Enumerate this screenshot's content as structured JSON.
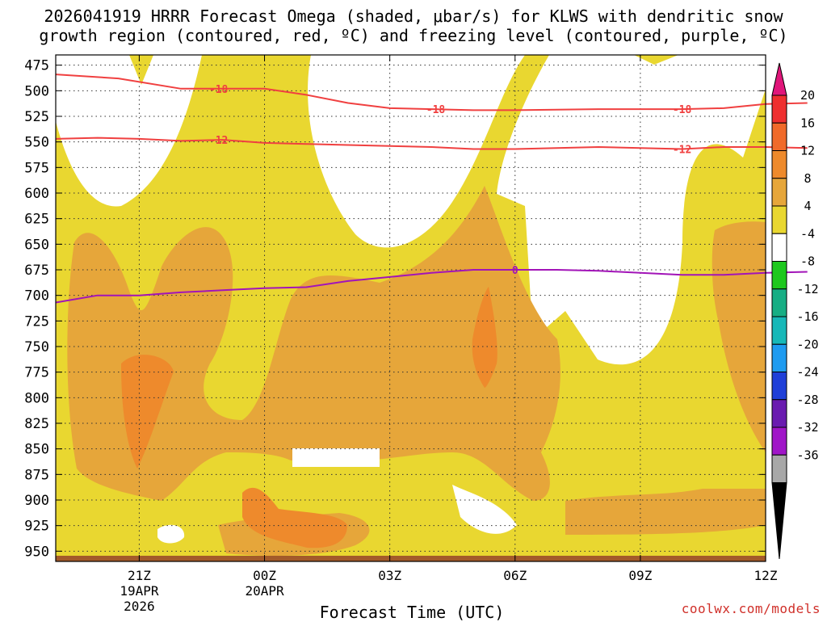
{
  "title_line1": "2026041919 HRRR Forecast Omega (shaded, μbar/s) for KLWS with dendritic snow",
  "title_line2": "growth region (contoured, red, ºC) and freezing level (contoured, purple, ºC)",
  "credit": "coolwx.com/models",
  "chart_data": {
    "type": "heatmap",
    "title": "2026041919 HRRR Forecast Omega (shaded, μbar/s) for KLWS with dendritic snow growth region (contoured, red, ºC) and freezing level (contoured, purple, ºC)",
    "xlabel": "Forecast Time (UTC)",
    "ylabel": "",
    "y_axis": "pressure (hPa), inverted",
    "y_ticks": [
      475,
      500,
      525,
      550,
      575,
      600,
      625,
      650,
      675,
      700,
      725,
      750,
      775,
      800,
      825,
      850,
      875,
      900,
      925,
      950
    ],
    "ylim": [
      465,
      960
    ],
    "xlim_hours": [
      19,
      36
    ],
    "x_ticks": [
      {
        "hour": 21,
        "label": "21Z",
        "date": "19APR",
        "year": "2026"
      },
      {
        "hour": 24,
        "label": "00Z",
        "date": "20APR",
        "year": ""
      },
      {
        "hour": 27,
        "label": "03Z",
        "date": "",
        "year": ""
      },
      {
        "hour": 30,
        "label": "06Z",
        "date": "",
        "year": ""
      },
      {
        "hour": 33,
        "label": "09Z",
        "date": "",
        "year": ""
      },
      {
        "hour": 36,
        "label": "12Z",
        "date": "",
        "year": ""
      }
    ],
    "grid": true,
    "colorbar": {
      "labels": [
        "20",
        "16",
        "12",
        "8",
        "4",
        "-4",
        "-8",
        "-12",
        "-16",
        "-20",
        "-24",
        "-28",
        "-32",
        "-36"
      ],
      "colors": [
        "#e0167a",
        "#ef2f2f",
        "#f06a2a",
        "#ee8a2c",
        "#e6a63a",
        "#e9d730",
        "#ffffff",
        "#1ec81e",
        "#17ae84",
        "#17b8b8",
        "#1e9bf0",
        "#1f3fd8",
        "#6a1bb0",
        "#a016c8",
        "#a8a8a8",
        "#000000"
      ]
    },
    "shading_colors": {
      "4-8": "#e9d730",
      "8-12": "#e6a63a",
      "12-16": "#ee8a2c"
    },
    "contours": [
      {
        "label": "-18",
        "color": "#f04040",
        "points": [
          [
            19,
            484
          ],
          [
            20.5,
            488
          ],
          [
            22,
            498
          ],
          [
            23,
            498
          ],
          [
            24,
            498
          ],
          [
            25,
            504
          ],
          [
            26,
            512
          ],
          [
            27,
            517
          ],
          [
            28,
            518
          ],
          [
            29,
            519
          ],
          [
            30,
            519
          ],
          [
            32,
            518
          ],
          [
            34,
            518
          ],
          [
            35,
            517
          ],
          [
            36,
            513
          ],
          [
            37,
            512
          ]
        ],
        "labels_at": [
          [
            22.9,
            498
          ],
          [
            28.1,
            518
          ],
          [
            34.0,
            518
          ]
        ]
      },
      {
        "label": "-12",
        "color": "#f04040",
        "points": [
          [
            19,
            547
          ],
          [
            20,
            546
          ],
          [
            21,
            547
          ],
          [
            22,
            549
          ],
          [
            23,
            548
          ],
          [
            24,
            551
          ],
          [
            25,
            552
          ],
          [
            26,
            553
          ],
          [
            27,
            554
          ],
          [
            28,
            555
          ],
          [
            29,
            557
          ],
          [
            30,
            557
          ],
          [
            31,
            556
          ],
          [
            32,
            555
          ],
          [
            33,
            556
          ],
          [
            34,
            557
          ],
          [
            35,
            555
          ],
          [
            36,
            555
          ],
          [
            37,
            556
          ]
        ],
        "labels_at": [
          [
            22.9,
            548
          ],
          [
            34.0,
            557
          ]
        ]
      },
      {
        "label": "0",
        "color": "#a214b8",
        "points": [
          [
            19,
            707
          ],
          [
            20,
            700
          ],
          [
            21,
            700
          ],
          [
            22,
            697
          ],
          [
            23,
            695
          ],
          [
            24,
            693
          ],
          [
            25,
            692
          ],
          [
            26,
            686
          ],
          [
            27,
            682
          ],
          [
            28,
            678
          ],
          [
            29,
            675
          ],
          [
            30,
            675
          ],
          [
            31,
            675
          ],
          [
            32,
            676
          ],
          [
            33,
            678
          ],
          [
            34,
            680
          ],
          [
            35,
            680
          ],
          [
            36,
            678
          ],
          [
            37,
            677
          ]
        ],
        "labels_at": [
          [
            30.0,
            675
          ]
        ]
      }
    ]
  }
}
